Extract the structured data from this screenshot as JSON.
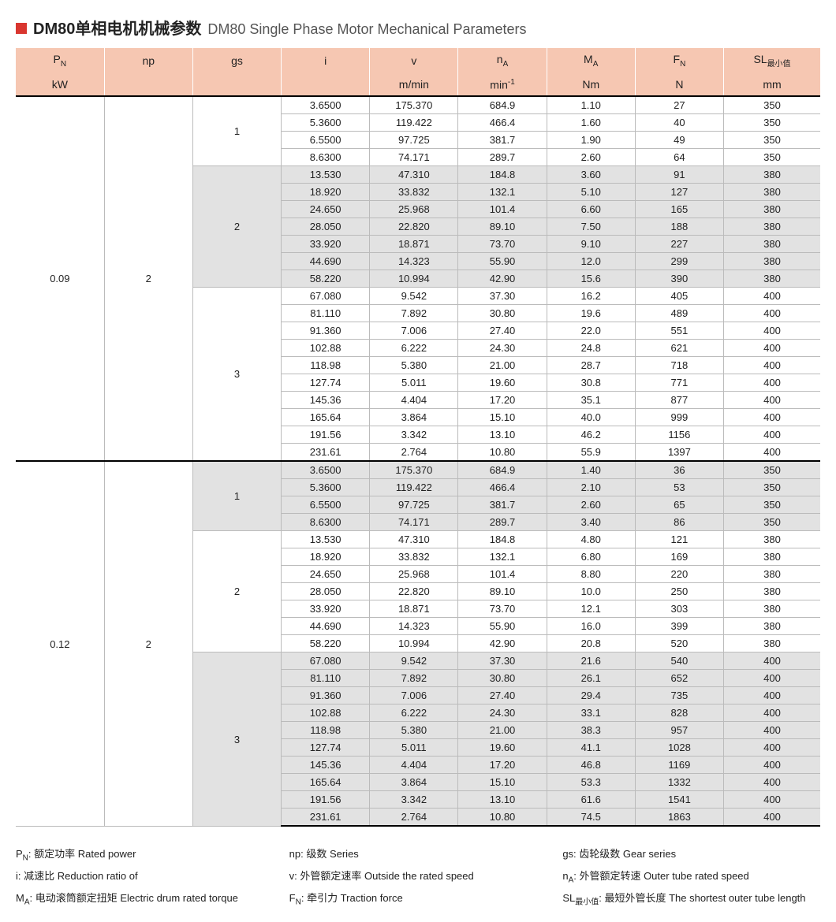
{
  "title": {
    "cn": "DM80单相电机机械参数",
    "en": "DM80 Single Phase Motor Mechanical Parameters"
  },
  "header": {
    "row1": [
      "P_N",
      "np",
      "gs",
      "i",
      "v",
      "n_A",
      "M_A",
      "F_N",
      "SL_最小值"
    ],
    "row2": [
      "kW",
      "",
      "",
      "",
      "m/min",
      "min^-1",
      "Nm",
      "N",
      "mm"
    ]
  },
  "styling": {
    "header_bg": "#f6c7b2",
    "shade_bg": "#e2e2e2",
    "border_color": "#bbbbbb",
    "section_border": "#000000",
    "accent": "#d9362f",
    "font_size_body": 13,
    "font_size_header": 14,
    "col_widths_pct": [
      11,
      11,
      11,
      11,
      11,
      11,
      11,
      11,
      12
    ]
  },
  "sections": [
    {
      "pn": "0.09",
      "np": "2",
      "groups": [
        {
          "gs": "1",
          "shade": false,
          "rows": [
            [
              "3.6500",
              "175.370",
              "684.9",
              "1.10",
              "27",
              "350"
            ],
            [
              "5.3600",
              "119.422",
              "466.4",
              "1.60",
              "40",
              "350"
            ],
            [
              "6.5500",
              "97.725",
              "381.7",
              "1.90",
              "49",
              "350"
            ],
            [
              "8.6300",
              "74.171",
              "289.7",
              "2.60",
              "64",
              "350"
            ]
          ]
        },
        {
          "gs": "2",
          "shade": true,
          "rows": [
            [
              "13.530",
              "47.310",
              "184.8",
              "3.60",
              "91",
              "380"
            ],
            [
              "18.920",
              "33.832",
              "132.1",
              "5.10",
              "127",
              "380"
            ],
            [
              "24.650",
              "25.968",
              "101.4",
              "6.60",
              "165",
              "380"
            ],
            [
              "28.050",
              "22.820",
              "89.10",
              "7.50",
              "188",
              "380"
            ],
            [
              "33.920",
              "18.871",
              "73.70",
              "9.10",
              "227",
              "380"
            ],
            [
              "44.690",
              "14.323",
              "55.90",
              "12.0",
              "299",
              "380"
            ],
            [
              "58.220",
              "10.994",
              "42.90",
              "15.6",
              "390",
              "380"
            ]
          ]
        },
        {
          "gs": "3",
          "shade": false,
          "rows": [
            [
              "67.080",
              "9.542",
              "37.30",
              "16.2",
              "405",
              "400"
            ],
            [
              "81.110",
              "7.892",
              "30.80",
              "19.6",
              "489",
              "400"
            ],
            [
              "91.360",
              "7.006",
              "27.40",
              "22.0",
              "551",
              "400"
            ],
            [
              "102.88",
              "6.222",
              "24.30",
              "24.8",
              "621",
              "400"
            ],
            [
              "118.98",
              "5.380",
              "21.00",
              "28.7",
              "718",
              "400"
            ],
            [
              "127.74",
              "5.011",
              "19.60",
              "30.8",
              "771",
              "400"
            ],
            [
              "145.36",
              "4.404",
              "17.20",
              "35.1",
              "877",
              "400"
            ],
            [
              "165.64",
              "3.864",
              "15.10",
              "40.0",
              "999",
              "400"
            ],
            [
              "191.56",
              "3.342",
              "13.10",
              "46.2",
              "1156",
              "400"
            ],
            [
              "231.61",
              "2.764",
              "10.80",
              "55.9",
              "1397",
              "400"
            ]
          ]
        }
      ]
    },
    {
      "pn": "0.12",
      "np": "2",
      "groups": [
        {
          "gs": "1",
          "shade": true,
          "rows": [
            [
              "3.6500",
              "175.370",
              "684.9",
              "1.40",
              "36",
              "350"
            ],
            [
              "5.3600",
              "119.422",
              "466.4",
              "2.10",
              "53",
              "350"
            ],
            [
              "6.5500",
              "97.725",
              "381.7",
              "2.60",
              "65",
              "350"
            ],
            [
              "8.6300",
              "74.171",
              "289.7",
              "3.40",
              "86",
              "350"
            ]
          ]
        },
        {
          "gs": "2",
          "shade": false,
          "rows": [
            [
              "13.530",
              "47.310",
              "184.8",
              "4.80",
              "121",
              "380"
            ],
            [
              "18.920",
              "33.832",
              "132.1",
              "6.80",
              "169",
              "380"
            ],
            [
              "24.650",
              "25.968",
              "101.4",
              "8.80",
              "220",
              "380"
            ],
            [
              "28.050",
              "22.820",
              "89.10",
              "10.0",
              "250",
              "380"
            ],
            [
              "33.920",
              "18.871",
              "73.70",
              "12.1",
              "303",
              "380"
            ],
            [
              "44.690",
              "14.323",
              "55.90",
              "16.0",
              "399",
              "380"
            ],
            [
              "58.220",
              "10.994",
              "42.90",
              "20.8",
              "520",
              "380"
            ]
          ]
        },
        {
          "gs": "3",
          "shade": true,
          "rows": [
            [
              "67.080",
              "9.542",
              "37.30",
              "21.6",
              "540",
              "400"
            ],
            [
              "81.110",
              "7.892",
              "30.80",
              "26.1",
              "652",
              "400"
            ],
            [
              "91.360",
              "7.006",
              "27.40",
              "29.4",
              "735",
              "400"
            ],
            [
              "102.88",
              "6.222",
              "24.30",
              "33.1",
              "828",
              "400"
            ],
            [
              "118.98",
              "5.380",
              "21.00",
              "38.3",
              "957",
              "400"
            ],
            [
              "127.74",
              "5.011",
              "19.60",
              "41.1",
              "1028",
              "400"
            ],
            [
              "145.36",
              "4.404",
              "17.20",
              "46.8",
              "1169",
              "400"
            ],
            [
              "165.64",
              "3.864",
              "15.10",
              "53.3",
              "1332",
              "400"
            ],
            [
              "191.56",
              "3.342",
              "13.10",
              "61.6",
              "1541",
              "400"
            ],
            [
              "231.61",
              "2.764",
              "10.80",
              "74.5",
              "1863",
              "400"
            ]
          ]
        }
      ]
    }
  ],
  "legend": [
    [
      "P_N: 额定功率 Rated power",
      "np: 级数 Series",
      "gs: 齿轮级数 Gear series"
    ],
    [
      "i: 减速比 Reduction ratio of",
      "v: 外管额定速率 Outside the rated speed",
      "n_A: 外管额定转速 Outer tube rated speed"
    ],
    [
      "M_A: 电动滚筒额定扭矩 Electric drum rated torque",
      "F_N: 牵引力 Traction force",
      "SL_最小值: 最短外管长度 The shortest outer tube length"
    ]
  ]
}
